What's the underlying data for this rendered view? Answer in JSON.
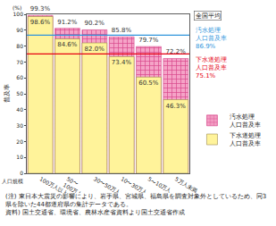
{
  "chart_data": {
    "type": "bar",
    "stacked": false,
    "categories": [
      "100万人以上",
      "50〜\n100万人",
      "30〜50万人",
      "10〜30万人",
      "5〜10万人",
      "5万人未満"
    ],
    "x_label": "人口規模",
    "y_label": "普及率",
    "y_unit": "(%)",
    "series": [
      {
        "name": "汚水処理\n人口普及率",
        "color": "#f5a3c7",
        "marker": "cross",
        "values": [
          99.3,
          91.2,
          90.2,
          85.8,
          79.7,
          72.2
        ],
        "value_labels": [
          "99.3%",
          "91.2%",
          "90.2%",
          "85.8%",
          "79.7%",
          "72.2%"
        ]
      },
      {
        "name": "下水道処理\n人口普及率",
        "color": "#fff39a",
        "values": [
          98.6,
          84.6,
          82.0,
          73.4,
          60.5,
          46.3
        ],
        "value_labels": [
          "98.6%",
          "84.6%",
          "82.0%",
          "73.4%",
          "60.5%",
          "46.3%"
        ]
      }
    ],
    "reference_lines": {
      "title": "全国平均",
      "lines": [
        {
          "name": "汚水処理\n人口普及率",
          "value": 86.9,
          "value_label": "86.9%",
          "color": "#2f95dc"
        },
        {
          "name": "下水道処理\n人口普及率",
          "value": 75.1,
          "value_label": "75.1%",
          "color": "#e60012"
        }
      ]
    },
    "ylim": [
      0,
      100
    ],
    "yticks": [
      0,
      10,
      20,
      30,
      40,
      50,
      60,
      70,
      80,
      90,
      100
    ],
    "grid": false,
    "data_labels": true,
    "legend": "right",
    "notes": [
      "(注) 東日本大震災の影響により、岩手県、宮城県、福島県を調査対象外としているため、同3県を除いた44都道府県の集計データである。",
      "資料) 国土交通省、環境省、農林水産省資料より国土交通省作成"
    ]
  }
}
